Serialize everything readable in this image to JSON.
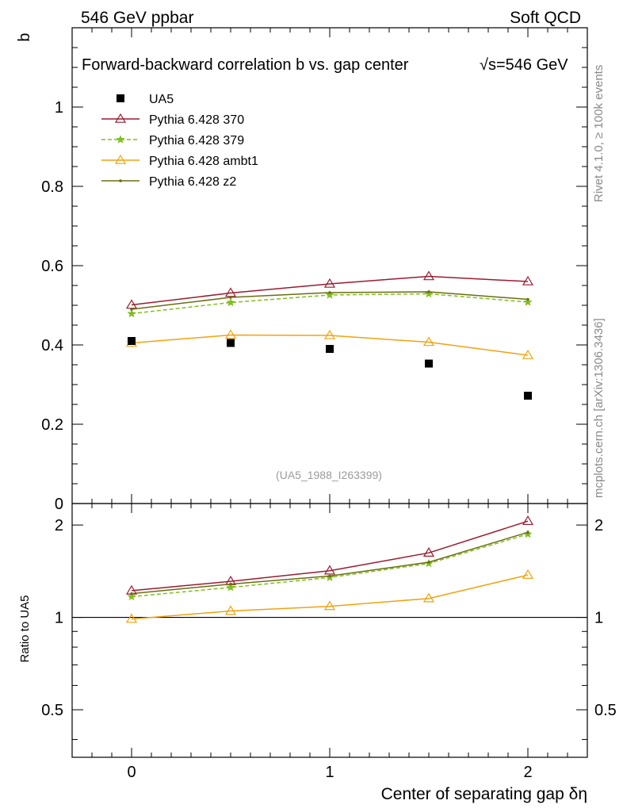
{
  "header": {
    "left_label": "546 GeV ppbar",
    "right_label": "Soft QCD"
  },
  "side_labels": {
    "rivet": "Rivet 4.1.0, ≥ 100k events",
    "mcplots": "mcplots.cern.ch [arXiv:1306.3436]"
  },
  "chart_data": {
    "type": "line",
    "title": "Forward-backward correlation b  vs. gap center",
    "title_energy": "√s=546 GeV",
    "watermark": "(UA5_1988_I263399)",
    "xlabel": "Center of separating gap δη",
    "ylabel": "b",
    "ratio_ylabel": "Ratio to UA5",
    "xlim": [
      -0.3,
      2.3
    ],
    "ylim": [
      0,
      1.2
    ],
    "ratio_ylim": [
      0.35,
      2.35
    ],
    "x_ticks": [
      0,
      1,
      2
    ],
    "x_tick_labels": [
      "0",
      "1",
      "2"
    ],
    "y_ticks": [
      0,
      0.2,
      0.4,
      0.6,
      0.8,
      1
    ],
    "y_tick_labels": [
      "0",
      "0.2",
      "0.4",
      "0.6",
      "0.8",
      "1"
    ],
    "ratio_ticks": [
      0.5,
      1,
      2
    ],
    "ratio_tick_labels": [
      "0.5",
      "1",
      "2"
    ],
    "legend_position": "top-left",
    "x": [
      0,
      0.5,
      1,
      1.5,
      2
    ],
    "data": {
      "name": "UA5",
      "values": [
        0.41,
        0.405,
        0.39,
        0.353,
        0.272
      ]
    },
    "series": [
      {
        "name": "Pythia 6.428 370",
        "color": "#9b1b30",
        "marker": "triangle-open",
        "dash": "solid",
        "values": [
          0.501,
          0.531,
          0.554,
          0.573,
          0.56
        ],
        "ratio": [
          1.222,
          1.311,
          1.42,
          1.623,
          2.059
        ]
      },
      {
        "name": "Pythia 6.428 379",
        "color": "#7fbf1f",
        "marker": "star",
        "dash": "dashed",
        "values": [
          0.479,
          0.507,
          0.526,
          0.529,
          0.508
        ],
        "ratio": [
          1.168,
          1.252,
          1.349,
          1.499,
          1.868
        ]
      },
      {
        "name": "Pythia 6.428 ambt1",
        "color": "#f2a20f",
        "marker": "triangle-open",
        "dash": "solid",
        "values": [
          0.405,
          0.425,
          0.424,
          0.407,
          0.374
        ],
        "ratio": [
          0.988,
          1.049,
          1.087,
          1.153,
          1.375
        ]
      },
      {
        "name": "Pythia 6.428 z2",
        "color": "#6b6e0f",
        "marker": "dot",
        "dash": "solid",
        "values": [
          0.49,
          0.52,
          0.532,
          0.534,
          0.515
        ],
        "ratio": [
          1.195,
          1.284,
          1.364,
          1.513,
          1.893
        ]
      }
    ]
  }
}
